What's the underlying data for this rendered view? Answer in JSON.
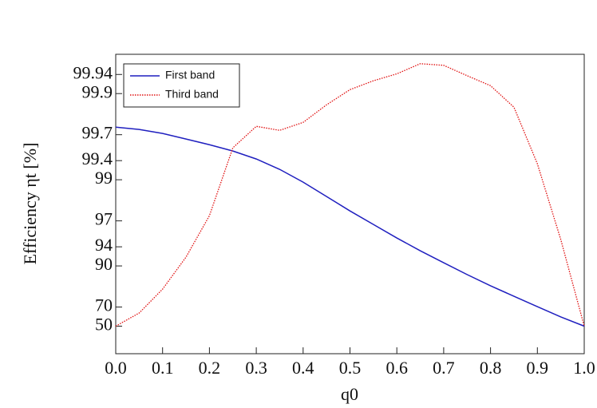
{
  "chart_data": {
    "type": "line",
    "xlabel": "q0",
    "ylabel": "Efficiency ηt [%]",
    "x": [
      0,
      0.05,
      0.1,
      0.15,
      0.2,
      0.25,
      0.3,
      0.35,
      0.4,
      0.45,
      0.5,
      0.55,
      0.6,
      0.65,
      0.7,
      0.75,
      0.8,
      0.85,
      0.9,
      0.95,
      1.0
    ],
    "series": [
      {
        "name": "First band",
        "color": "#1f1fbf",
        "dash": "solid",
        "values": [
          99.755,
          99.739,
          99.71,
          99.663,
          99.608,
          99.536,
          99.426,
          99.242,
          98.934,
          98.436,
          97.7,
          96.7,
          95.26,
          93.33,
          90.82,
          87.4,
          83.0,
          77.5,
          70.3,
          60.9,
          50
        ]
      },
      {
        "name": "Third band",
        "color": "#e01010",
        "dash": "dotted",
        "values": [
          50,
          64.8,
          81.4,
          92.1,
          97.39,
          99.574,
          99.76,
          99.733,
          99.784,
          99.865,
          99.91,
          99.929,
          99.941,
          99.955,
          99.953,
          99.938,
          99.919,
          99.856,
          99.347,
          95.05,
          50
        ]
      }
    ],
    "xlim": [
      0,
      1.0
    ],
    "xticks": [
      {
        "value": 0,
        "label": "0.0"
      },
      0.1,
      0.2,
      0.3,
      0.4,
      0.5,
      0.6,
      0.7,
      0.8,
      0.9,
      {
        "value": 1.0,
        "label": "1.0"
      }
    ],
    "yscale": "complement-log",
    "ylim": [
      -4.4,
      99.965
    ],
    "yticks": [
      50,
      70,
      90,
      94,
      97,
      99,
      99.4,
      99.7,
      99.9,
      99.94
    ],
    "grid": false,
    "legend": "upper-left"
  }
}
